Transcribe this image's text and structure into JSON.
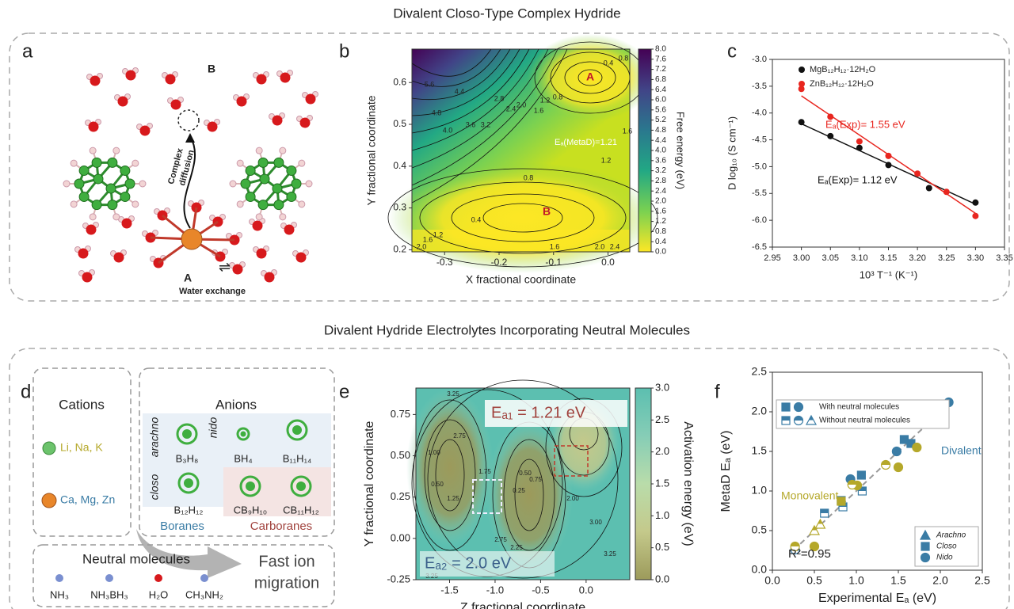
{
  "titles": [
    "Divalent Closo-Type Complex Hydride",
    "Divalent Hydride Electrolytes Incorporating Neutral Molecules"
  ],
  "panel_a": {
    "letter": "a",
    "site_b": "B",
    "site_a": "A",
    "diffusion": [
      "Complex",
      "diffusion"
    ],
    "exchange": "Water exchange",
    "equilibrium": "⇌"
  },
  "panel_b": {
    "letter": "b",
    "type": "contour",
    "xlabel": "X fractional coordinate",
    "ylabel": "Y fractional coordinate",
    "xlim": [
      -0.36,
      0.04
    ],
    "ylim": [
      0.195,
      0.68
    ],
    "xticks": [
      -0.3,
      -0.2,
      -0.1,
      {
        "value": 0,
        "label": "0.0"
      }
    ],
    "yticks": [
      0.2,
      0.3,
      0.4,
      0.5,
      0.6
    ],
    "colorbar": {
      "label": "Free energy (eV)",
      "lim": [
        0,
        8
      ],
      "ticks": [
        {
          "value": 0,
          "label": "0.0"
        },
        0.4,
        0.8,
        1.2,
        1.6,
        {
          "value": 2,
          "label": "2.0"
        },
        2.4,
        2.8,
        3.2,
        3.6,
        {
          "value": 4,
          "label": "4.0"
        },
        4.4,
        4.8,
        5.2,
        5.6,
        {
          "value": 6,
          "label": "6.0"
        },
        6.4,
        6.8,
        7.2,
        7.6,
        {
          "value": 8,
          "label": "8.0"
        }
      ],
      "colors": [
        "#fde725",
        "#7ad151",
        "#22a884",
        "#2a788e",
        "#414487",
        "#440154"
      ]
    },
    "contour_labels": [
      0.4,
      0.8,
      5.6,
      4.8,
      4.4,
      {
        "value": 4,
        "label": "4.0"
      },
      3.6,
      3.2,
      2.8,
      2.4,
      {
        "value": 2,
        "label": "2.0"
      },
      1.6,
      1.2,
      0.8,
      1.6,
      1.2,
      0.8,
      0.4,
      1.2,
      1.6,
      {
        "value": 2,
        "label": "2.0"
      },
      1.6,
      {
        "value": 2,
        "label": "2.0"
      },
      2.4
    ],
    "minima": [
      "A",
      "B"
    ],
    "annotation": "Eₐ(MetaD)=1.21"
  },
  "panel_c": {
    "letter": "c",
    "type": "scatter",
    "xlabel": "10³ T⁻¹ (K⁻¹)",
    "ylabel": "D log₁₀ (S cm⁻¹)",
    "xlim": [
      2.95,
      3.35
    ],
    "ylim": [
      -6.5,
      -3.0
    ],
    "xticks": [
      2.95,
      {
        "value": 3,
        "label": "3.00"
      },
      3.05,
      {
        "value": 3.1,
        "label": "3.10"
      },
      3.15,
      {
        "value": 3.2,
        "label": "3.20"
      },
      3.25,
      {
        "value": 3.3,
        "label": "3.30"
      },
      3.35
    ],
    "yticks": [
      {
        "value": -3,
        "label": "-3.0"
      },
      -3.5,
      {
        "value": -4,
        "label": "-4.0"
      },
      -4.5,
      {
        "value": -5,
        "label": "-5.0"
      },
      -5.5,
      {
        "value": -6,
        "label": "-6.0"
      },
      -6.5
    ],
    "fit_x": [
      3.0,
      3.3
    ],
    "series": [
      {
        "name": "MgB₁₂H₁₂·12H₂O",
        "color": "#111111",
        "x": [
          3.0,
          3.05,
          3.1,
          3.15,
          3.22,
          3.3
        ],
        "values": [
          -4.17,
          -4.43,
          -4.65,
          -4.97,
          -5.4,
          -5.67
        ],
        "fit": [
          -4.2,
          -5.7
        ]
      },
      {
        "name": "ZnB₁₂H₁₂·12H₂O",
        "color": "#e8261f",
        "x": [
          3.0,
          3.05,
          3.1,
          3.15,
          3.2,
          3.25,
          3.3
        ],
        "values": [
          -3.55,
          -4.07,
          -4.53,
          -4.8,
          -5.13,
          -5.47,
          -5.92
        ],
        "fit": [
          -3.68,
          -5.87
        ]
      }
    ],
    "annotations": [
      {
        "text": "Eₐ(Exp)= 1.55 eV",
        "color": "#e8261f"
      },
      {
        "text": "Eₐ(Exp)= 1.12 eV",
        "color": "#111111"
      }
    ]
  },
  "panel_d": {
    "letter": "d",
    "cations": {
      "title": "Cations",
      "monovalent": "Li, Na, K",
      "divalent": "Ca, Mg, Zn"
    },
    "anions": {
      "title": "Anions",
      "classes": [
        "arachno",
        "nido",
        "closo"
      ],
      "formulas": [
        "B₃H₈",
        "BH₄",
        "B₁₁H₁₄",
        "B₁₂H₁₂",
        "CB₉H₁₀",
        "CB₁₁H₁₂"
      ],
      "families": [
        "Boranes",
        "Carboranes"
      ]
    },
    "neutral": {
      "title": "Neutral molecules",
      "formulas": [
        "NH₃",
        "NH₃BH₃",
        "H₂O",
        "CH₃NH₂"
      ]
    },
    "arrow_text": [
      "Fast ion",
      "migration"
    ]
  },
  "panel_e": {
    "letter": "e",
    "type": "contour",
    "xlabel": "Z fractional coordinate",
    "ylabel": "Y fractional coordinate",
    "xlim": [
      -1.87,
      0.48
    ],
    "ylim": [
      -0.25,
      0.91
    ],
    "xticks": [
      -1.5,
      {
        "value": -1,
        "label": "-1.0"
      },
      -0.5,
      {
        "value": 0,
        "label": "0.0"
      }
    ],
    "yticks": [
      0.75,
      {
        "value": 0.5,
        "label": "0.50"
      },
      0.25,
      {
        "value": 0,
        "label": "0.00"
      },
      -0.25
    ],
    "colorbar": {
      "label": "Activation energy (eV)",
      "lim": [
        0,
        3
      ],
      "ticks": [
        {
          "value": 0,
          "label": "0.0"
        },
        0.5,
        {
          "value": 1,
          "label": "1.0"
        },
        1.5,
        {
          "value": 2,
          "label": "2.0"
        },
        2.5,
        {
          "value": 3,
          "label": "3.0"
        }
      ],
      "colors": [
        "#9c9a5b",
        "#c4c98b",
        "#b9dcaa",
        "#86cdb6",
        "#5cbfb0"
      ]
    },
    "contour_labels": [
      3.25,
      2.75,
      {
        "value": 1,
        "label": "1.00"
      },
      {
        "value": 0.5,
        "label": "0.50"
      },
      1.25,
      1.75,
      0.25,
      {
        "value": 0.5,
        "label": "0.50"
      },
      0.75,
      {
        "value": 2,
        "label": "2.00"
      },
      {
        "value": 3,
        "label": "3.00"
      },
      3.25,
      2.75,
      2.25,
      3.25
    ],
    "annotations": [
      "Eₐ₁ = 1.21 eV",
      "Eₐ₂ = 2.0 eV"
    ]
  },
  "panel_f": {
    "letter": "f",
    "type": "scatter",
    "xlabel": "Experimental Eₐ (eV)",
    "ylabel": "MetaD Eₐ (eV)",
    "xlim": [
      0,
      2.5
    ],
    "ylim": [
      0,
      2.5
    ],
    "xticks": [
      {
        "value": 0,
        "label": "0.0"
      },
      0.5,
      {
        "value": 1,
        "label": "1.0"
      },
      1.5,
      {
        "value": 2,
        "label": "2.0"
      },
      2.5
    ],
    "yticks": [
      {
        "value": 0,
        "label": "0.0"
      },
      0.5,
      {
        "value": 1,
        "label": "1.0"
      },
      1.5,
      {
        "value": 2,
        "label": "2.0"
      },
      2.5
    ],
    "fit_x": [
      0.25,
      2.1
    ],
    "fit_y": [
      0.25,
      2.1
    ],
    "series": [
      {
        "color": "#3a7ca5",
        "shape": "circle",
        "fill": "full",
        "x": [
          2.1,
          2.03,
          1.48,
          0.93
        ],
        "values": [
          2.12,
          1.99,
          1.5,
          1.15
        ]
      },
      {
        "color": "#3a7ca5",
        "shape": "square",
        "fill": "full",
        "x": [
          1.57,
          1.65,
          1.06,
          0.82
        ],
        "values": [
          1.65,
          1.6,
          1.2,
          0.88
        ]
      },
      {
        "color": "#3a7ca5",
        "shape": "square",
        "fill": "half",
        "x": [
          0.62,
          0.84,
          1.07
        ],
        "values": [
          0.72,
          0.8,
          1.0
        ]
      },
      {
        "color": "#3a7ca5",
        "shape": "circle",
        "fill": "half",
        "x": [
          0.27
        ],
        "values": [
          0.26
        ]
      },
      {
        "color": "#b5a82a",
        "shape": "circle",
        "fill": "full",
        "x": [
          0.5,
          1.01,
          1.5,
          1.72
        ],
        "values": [
          0.3,
          1.07,
          1.3,
          1.55
        ]
      },
      {
        "color": "#b5a82a",
        "shape": "circle",
        "fill": "half",
        "x": [
          0.27,
          1.35,
          0.95
        ],
        "values": [
          0.3,
          1.33,
          1.08
        ]
      },
      {
        "color": "#b5a82a",
        "shape": "square",
        "fill": "full",
        "x": [
          0.82
        ],
        "values": [
          0.87
        ]
      },
      {
        "color": "#b5a82a",
        "shape": "triangle",
        "fill": "half",
        "x": [
          0.5,
          0.57
        ],
        "values": [
          0.5,
          0.58
        ]
      }
    ],
    "legend": {
      "with": "With neutral molecules",
      "without": "Without neutral molecules",
      "shapes": [
        "Arachno",
        "Closo",
        "Nido"
      ]
    },
    "groups": [
      "Divalent",
      "Monovalent"
    ],
    "r2": "R²=0.95"
  }
}
